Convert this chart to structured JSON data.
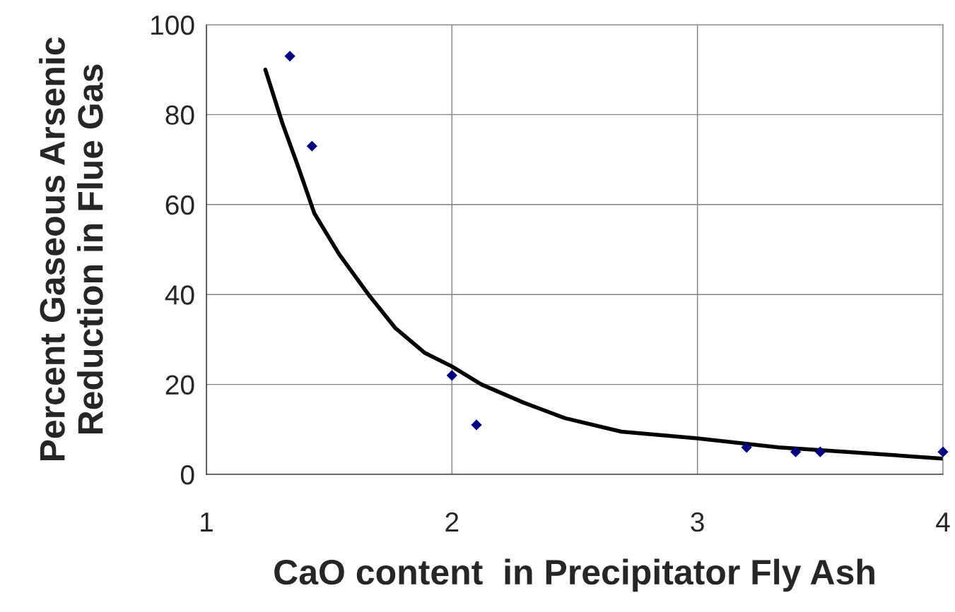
{
  "chart_data": {
    "type": "scatter",
    "xlabel": "CaO content  in Precipitator Fly Ash",
    "ylabel": "Percent Gaseous Arsenic\nReduction in Flue Gas",
    "xlim": [
      1,
      4
    ],
    "xticks": [
      1,
      2,
      3,
      4
    ],
    "ylim": [
      0,
      100
    ],
    "yticks": [
      0,
      20,
      40,
      60,
      80,
      100
    ],
    "grid": true,
    "legend": false,
    "series": [
      {
        "color": "#000080",
        "marker": "diamond",
        "x": [
          1.34,
          1.43,
          2.0,
          2.1,
          3.2,
          3.4,
          3.5,
          4.0
        ],
        "values": [
          93,
          73,
          22,
          11,
          6,
          5,
          5,
          5
        ]
      },
      {
        "type": "line",
        "color": "#000000",
        "marker": "none",
        "line_style": "solid",
        "x": [
          1.24,
          1.31,
          1.37,
          1.44,
          1.54,
          1.66,
          1.77,
          1.89,
          2.0,
          2.12,
          2.29,
          2.46,
          2.69,
          3.0,
          3.33,
          3.61,
          4.0
        ],
        "values": [
          90,
          78,
          69,
          58,
          49,
          40,
          32.5,
          27,
          24,
          20,
          16,
          12.5,
          9.5,
          8,
          6,
          5,
          3.5
        ]
      }
    ]
  }
}
